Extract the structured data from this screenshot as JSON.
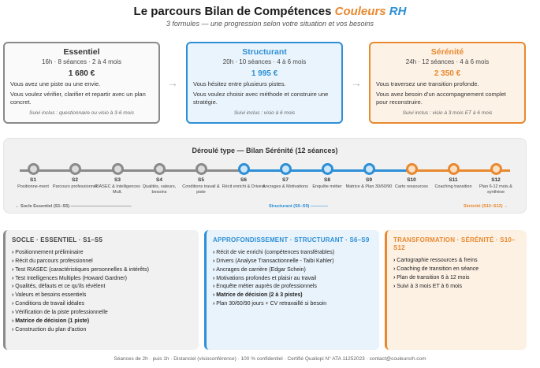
{
  "header": {
    "title_main": "Le parcours Bilan de Compétences",
    "title_brand": "Couleurs",
    "title_brand_rh": "RH",
    "subtitle": "3 formules — une progression selon votre situation et vos besoins"
  },
  "formulas": [
    {
      "name": "Essentiel",
      "meta": "16h · 8 séances · 2 à 4 mois",
      "price": "1 680 €",
      "desc1": "Vous avez une piste ou une envie.",
      "desc2": "Vous voulez vérifier, clarifier et repartir avec un plan concret.",
      "follow": "Suivi inclus : questionnaire ou visio à 3-6 mois"
    },
    {
      "name": "Structurant",
      "meta": "20h · 10 séances · 4 à 6 mois",
      "price": "1 995 €",
      "desc1": "Vous hésitez entre plusieurs pistes.",
      "desc2": "Vous voulez choisir avec méthode et construire une stratégie.",
      "follow": "Suivi inclus : visio à 6 mois"
    },
    {
      "name": "Sérénité",
      "meta": "24h · 12 séances · 4 à 6 mois",
      "price": "2 350 €",
      "desc1": "Vous traversez une transition profonde.",
      "desc2": "Vous avez besoin d'un accompagnement complet pour reconstruire.",
      "follow": "Suivi inclus : visio à 3 mois ET à 6 mois"
    }
  ],
  "arrow_glyph": "→",
  "timeline": {
    "title": "Déroulé type — Bilan Sérénité (12 séances)",
    "steps": [
      {
        "code": "S1",
        "label": "Positionne-ment"
      },
      {
        "code": "S2",
        "label": "Parcours professionnel"
      },
      {
        "code": "S3",
        "label": "RIASEC & Intelligences Mult."
      },
      {
        "code": "S4",
        "label": "Qualités, valeurs, besoins"
      },
      {
        "code": "S5",
        "label": "Conditions travail & piste"
      },
      {
        "code": "S6",
        "label": "Récit enrichi & Drivers"
      },
      {
        "code": "S7",
        "label": "Ancrages & Motivations"
      },
      {
        "code": "S8",
        "label": "Enquête métier"
      },
      {
        "code": "S9",
        "label": "Matrice & Plan 30/60/90"
      },
      {
        "code": "S10",
        "label": "Carto ressources"
      },
      {
        "code": "S11",
        "label": "Coaching transition"
      },
      {
        "code": "S12",
        "label": "Plan 6-12 mois & synthèse"
      }
    ],
    "phase_essentiel": "← Socle Essentiel (S1–S5) ——————————————",
    "phase_structurant": "Structurant (S6–S9) ————",
    "phase_serenite": "Sérénité (S10–S12) →"
  },
  "phases": [
    {
      "head": "SOCLE · ESSENTIEL · S1–S5",
      "items": [
        "Positionnement préliminaire",
        "Récit du parcours professionnel",
        "Test RIASEC (caractéristiques personnelles & intérêts)",
        "Test Intelligences Multiples (Howard Gardner)",
        "Qualités, défauts et ce qu'ils révèlent",
        "Valeurs et besoins essentiels",
        "Conditions de travail idéales",
        "Vérification de la piste professionnelle",
        "Matrice de décision (1 piste)",
        "Construction du plan d'action"
      ]
    },
    {
      "head": "APPROFONDISSEMENT · STRUCTURANT · S6–S9",
      "items": [
        "Récit de vie enrichi (compétences transférables)",
        "Drivers (Analyse Transactionnelle - Taibi Kahler)",
        "Ancrages de carrière (Edgar Schein)",
        "Motivations profondes et plaisir au travail",
        "Enquête métier auprès de professionnels",
        "Matrice de décision (2 à 3 pistes)",
        "Plan 30/60/90 jours + CV retravaillé si besoin"
      ]
    },
    {
      "head": "TRANSFORMATION · SÉRÉNITÉ · S10–S12",
      "items": [
        "Cartographie ressources & freins",
        "Coaching de transition en séance",
        "Plan de transition 6 à 12 mois",
        "Suivi à 3 mois ET à 6 mois"
      ]
    }
  ],
  "footer": "Séances de 2h · puis 1h · Distanciel (visioconférence) · 100 % confidentiel · Certifié Qualiopi N° ATA 11252023 · contact@couleursrh.com",
  "colors": {
    "essentiel": "#8a8a8a",
    "structurant": "#2d8fd6",
    "serenite": "#e8892f"
  }
}
